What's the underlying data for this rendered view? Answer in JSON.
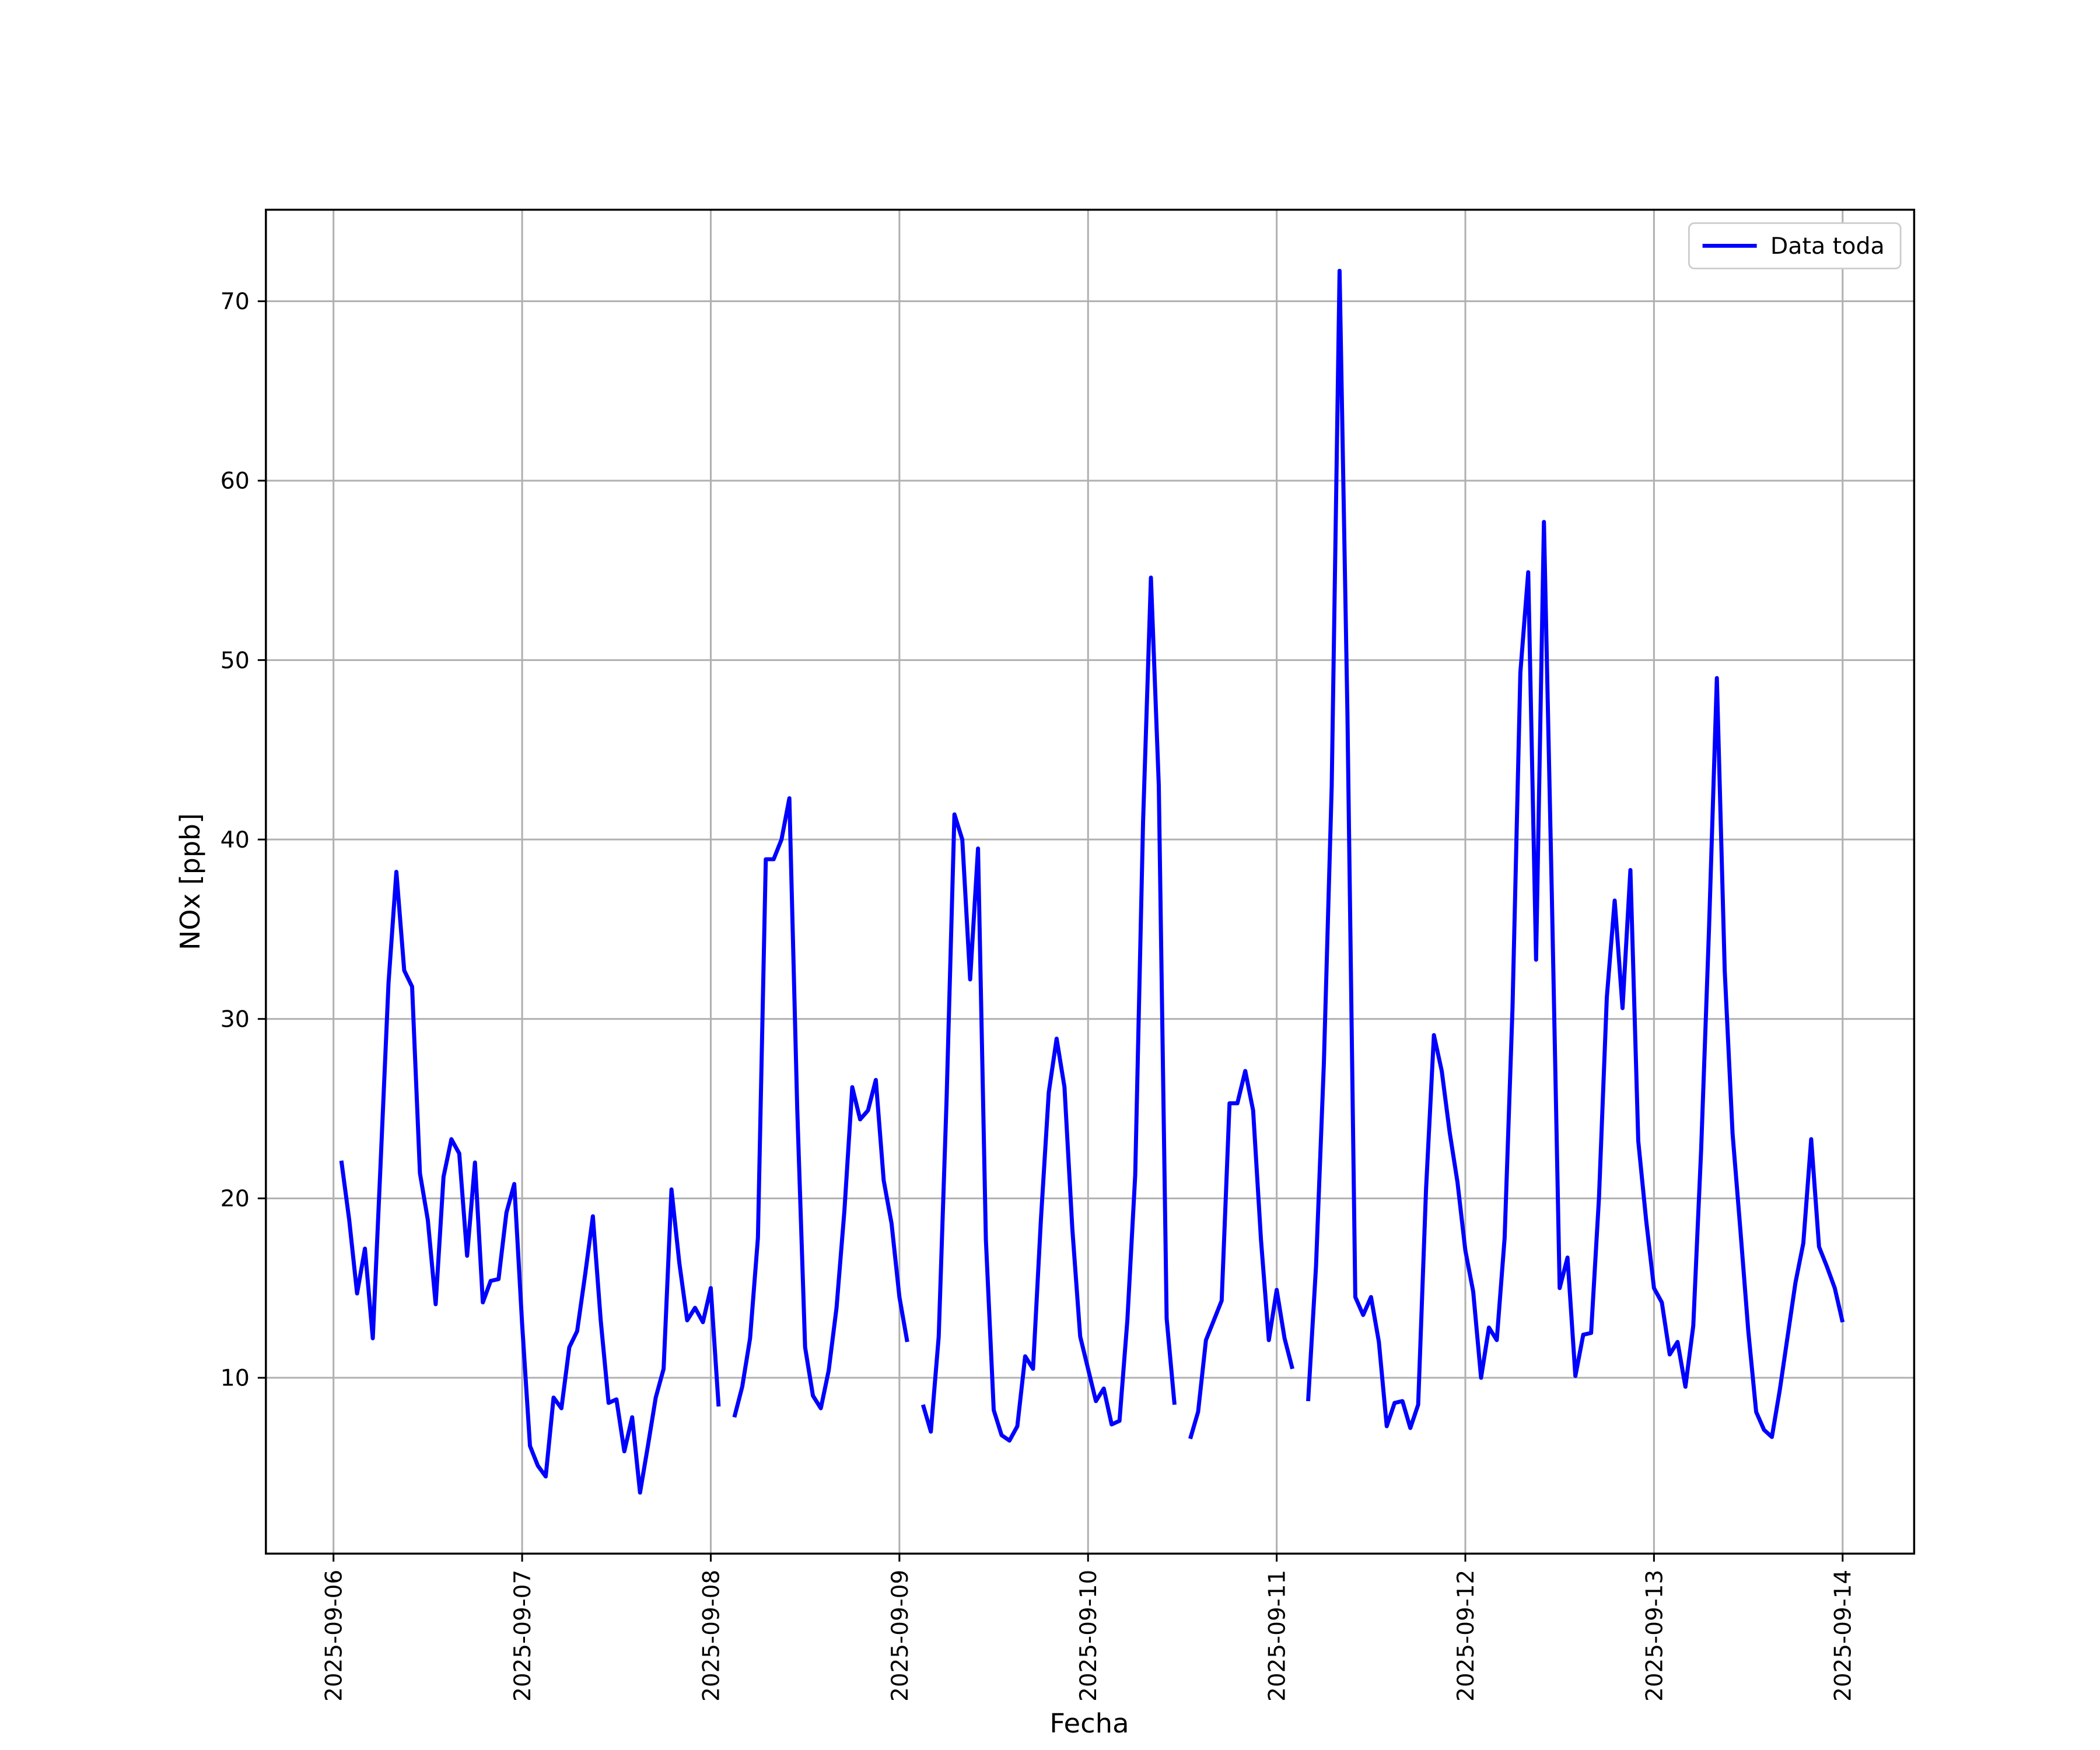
{
  "chart_data": {
    "type": "line",
    "xlabel": "Fecha",
    "ylabel": "NOx [ppb]",
    "x": [
      1,
      2,
      3,
      4,
      5,
      6,
      7,
      8,
      9,
      10,
      11,
      12,
      13,
      14,
      15,
      16,
      17,
      18,
      19,
      20,
      21,
      22,
      23,
      24,
      25,
      26,
      27,
      28,
      29,
      30,
      31,
      32,
      33,
      34,
      35,
      36,
      37,
      38,
      39,
      40,
      41,
      42,
      43,
      44,
      45,
      46,
      47,
      48,
      49,
      50,
      51,
      52,
      53,
      54,
      55,
      56,
      57,
      58,
      59,
      60,
      61,
      62,
      63,
      64,
      65,
      66,
      67,
      68,
      69,
      70,
      71,
      72,
      73,
      74,
      75,
      76,
      77,
      78,
      79,
      80,
      81,
      82,
      83,
      84,
      85,
      86,
      87,
      88,
      89,
      90,
      91,
      92,
      93,
      94,
      95,
      96,
      97,
      98,
      99,
      100,
      101,
      102,
      103,
      104,
      105,
      106,
      107,
      108,
      109,
      110,
      111,
      112,
      113,
      114,
      115,
      116,
      117,
      118,
      119,
      120,
      121,
      122,
      123,
      124,
      125,
      126,
      127,
      128,
      129,
      130,
      131,
      132,
      133,
      134,
      135,
      136,
      137,
      138,
      139,
      140,
      141,
      142,
      143,
      144,
      145,
      146,
      147,
      148,
      149,
      150,
      151,
      152,
      153,
      154,
      155,
      156,
      157,
      158,
      159,
      160,
      161,
      162,
      163,
      164,
      165,
      166,
      167,
      168,
      169,
      170,
      171,
      172,
      173,
      174,
      175,
      176,
      177,
      178,
      179,
      180,
      181,
      182,
      183,
      184,
      185,
      186,
      187,
      188,
      189,
      190,
      191,
      192
    ],
    "series": [
      {
        "name": "Data toda",
        "color": "#0000ff",
        "values": [
          22.1,
          18.8,
          14.7,
          17.2,
          12.2,
          22,
          32,
          38.2,
          32.7,
          31.8,
          21.4,
          18.8,
          14.1,
          21.2,
          23.3,
          22.5,
          16.8,
          22,
          14.2,
          15.4,
          15.5,
          19.2,
          20.8,
          13,
          6.2,
          5.1,
          4.5,
          8.9,
          8.3,
          11.7,
          12.6,
          15.7,
          19,
          13.2,
          8.6,
          8.8,
          5.9,
          7.8,
          3.6,
          6.2,
          8.9,
          10.5,
          20.5,
          16.4,
          13.2,
          13.9,
          13.1,
          15,
          8.4,
          null,
          7.8,
          9.5,
          12.2,
          17.8,
          38.9,
          38.9,
          40,
          42.3,
          25,
          11.7,
          9,
          8.3,
          10.4,
          13.9,
          19.3,
          26.2,
          24.4,
          24.9,
          26.6,
          21,
          18.6,
          14.5,
          12,
          null,
          8.5,
          7,
          12.3,
          25.5,
          41.4,
          40,
          32.2,
          39.5,
          17.7,
          8.2,
          6.8,
          6.5,
          7.3,
          11.2,
          10.5,
          18.8,
          25.9,
          28.9,
          26.2,
          18.3,
          12.3,
          10.5,
          8.7,
          9.4,
          7.4,
          7.6,
          13.2,
          21.3,
          41,
          54.6,
          43,
          13.3,
          8.5,
          null,
          6.6,
          8.1,
          12.1,
          13.2,
          14.3,
          25.3,
          25.3,
          27.1,
          24.9,
          17.7,
          12.1,
          14.9,
          12.2,
          10.5,
          null,
          8.7,
          16.2,
          27.5,
          43,
          71.7,
          47,
          14.5,
          13.5,
          14.5,
          12,
          7.3,
          8.6,
          8.7,
          7.2,
          8.5,
          20.5,
          29.1,
          27.1,
          23.7,
          20.9,
          17.1,
          14.8,
          10,
          12.8,
          12.1,
          17.8,
          30.6,
          49.3,
          54.9,
          33.3,
          57.7,
          37,
          15,
          16.7,
          10.1,
          12.4,
          12.5,
          20,
          31.2,
          36.6,
          30.6,
          38.3,
          23.2,
          18.8,
          15,
          14.2,
          11.3,
          12,
          9.5,
          12.9,
          22.7,
          35,
          49,
          32.7,
          23.6,
          18.2,
          12.6,
          8.1,
          7.1,
          6.7,
          9.3,
          12.3,
          15.3,
          17.5,
          23.3,
          17.3,
          16.2,
          15,
          13.1
        ]
      }
    ],
    "xlim": [
      -8.6,
      201.1
    ],
    "xticks": [
      {
        "value": 0,
        "label": "2025-09-06"
      },
      {
        "value": 24,
        "label": "2025-09-07"
      },
      {
        "value": 48,
        "label": "2025-09-08"
      },
      {
        "value": 72,
        "label": "2025-09-09"
      },
      {
        "value": 96,
        "label": "2025-09-10"
      },
      {
        "value": 120,
        "label": "2025-09-11"
      },
      {
        "value": 144,
        "label": "2025-09-12"
      },
      {
        "value": 168,
        "label": "2025-09-13"
      },
      {
        "value": 192,
        "label": "2025-09-14"
      }
    ],
    "ylim": [
      0.2,
      75.1
    ],
    "yticks": [
      10,
      20,
      30,
      40,
      50,
      60,
      70
    ],
    "grid": true,
    "legend": "upper-right"
  }
}
